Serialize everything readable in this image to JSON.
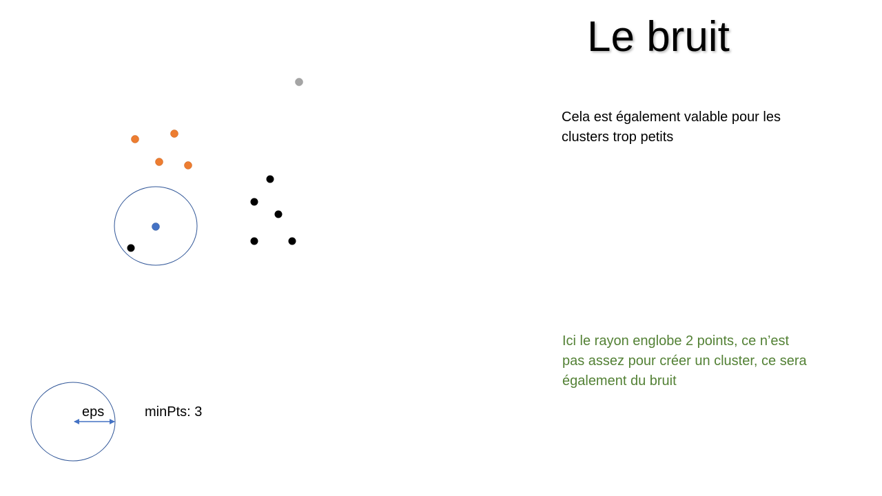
{
  "slide": {
    "title": "Le bruit",
    "description": "Cela est également valable pour les\nclusters trop petits",
    "note": "Ici le rayon englobe 2 points, ce n’est\npas assez pour créer un cluster, ce sera\négalement du bruit",
    "legend": {
      "eps_label": "eps",
      "minpts_label": "minPts: 3"
    }
  },
  "colors": {
    "note_text": "#538135",
    "circle_stroke": "#2f5597",
    "arrow": "#4472c4",
    "orange_points": "#ed7d31",
    "black_points": "#000000",
    "blue_point": "#4472c4",
    "gray_point": "#a5a5a5"
  }
}
